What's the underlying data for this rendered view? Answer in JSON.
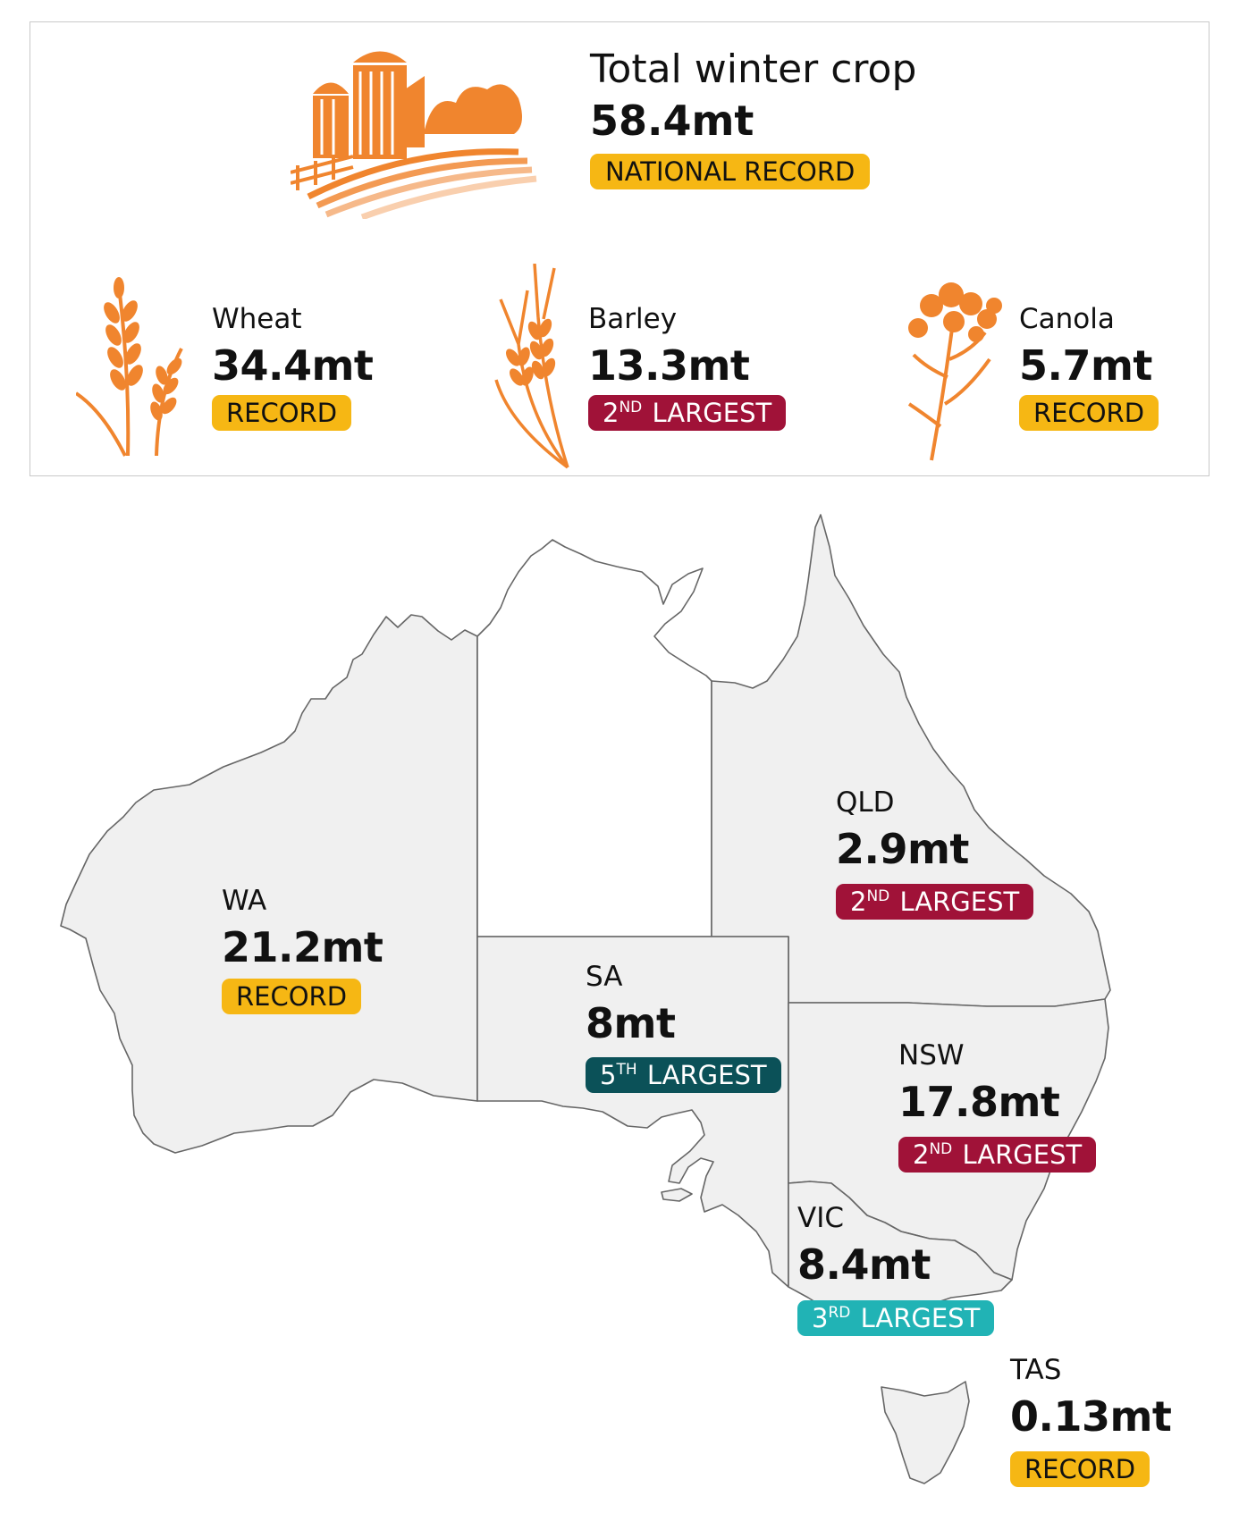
{
  "colors": {
    "record": "#f6b714",
    "second_largest": "#a01238",
    "third_largest": "#21b3b5",
    "fifth_largest": "#0b5158",
    "icon_orange": "#f0852e",
    "icon_light": "#f6b98a",
    "map_fill": "#f0f0f0",
    "map_stroke": "#555555"
  },
  "total": {
    "label": "Total winter crop",
    "value": "58.4mt",
    "badge": "NATIONAL RECORD"
  },
  "crops": [
    {
      "icon": "wheat-icon",
      "name": "Wheat",
      "value": "34.4mt",
      "badge_ord": "",
      "badge_sup": "",
      "badge_text": "RECORD",
      "badge_type": "record"
    },
    {
      "icon": "barley-icon",
      "name": "Barley",
      "value": "13.3mt",
      "badge_ord": "2",
      "badge_sup": "ND",
      "badge_text": "LARGEST",
      "badge_type": "second_largest"
    },
    {
      "icon": "canola-icon",
      "name": "Canola",
      "value": "5.7mt",
      "badge_ord": "",
      "badge_sup": "",
      "badge_text": "RECORD",
      "badge_type": "record"
    }
  ],
  "states": [
    {
      "code": "WA",
      "value": "21.2mt",
      "badge_ord": "",
      "badge_sup": "",
      "badge_text": "RECORD",
      "badge_type": "record"
    },
    {
      "code": "SA",
      "value": "8mt",
      "badge_ord": "5",
      "badge_sup": "TH",
      "badge_text": "LARGEST",
      "badge_type": "fifth_largest"
    },
    {
      "code": "QLD",
      "value": "2.9mt",
      "badge_ord": "2",
      "badge_sup": "ND",
      "badge_text": "LARGEST",
      "badge_type": "second_largest"
    },
    {
      "code": "NSW",
      "value": "17.8mt",
      "badge_ord": "2",
      "badge_sup": "ND",
      "badge_text": "LARGEST",
      "badge_type": "second_largest"
    },
    {
      "code": "VIC",
      "value": "8.4mt",
      "badge_ord": "3",
      "badge_sup": "RD",
      "badge_text": "LARGEST",
      "badge_type": "third_largest"
    },
    {
      "code": "TAS",
      "value": "0.13mt",
      "badge_ord": "",
      "badge_sup": "",
      "badge_text": "RECORD",
      "badge_type": "record"
    }
  ]
}
